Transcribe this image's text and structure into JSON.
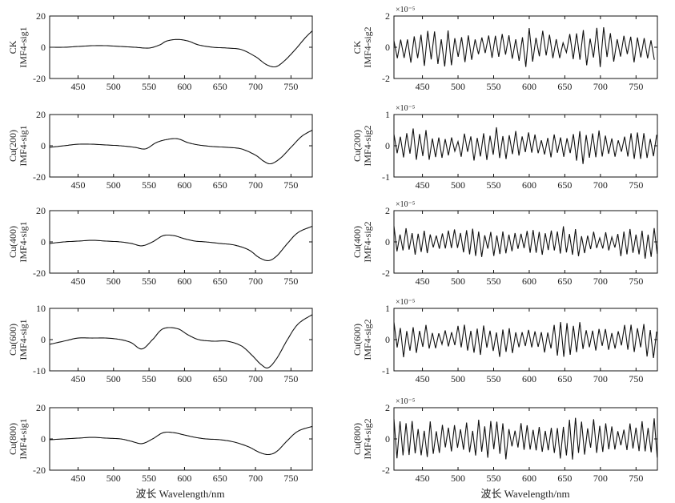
{
  "xlabel": "波长 Wavelength/nm",
  "chart_data": [
    {
      "type": "line",
      "column": "left",
      "row": 0,
      "ylabel": [
        "CK",
        "IMF4-sig1"
      ],
      "xlim": [
        410,
        780
      ],
      "ylim": [
        -20,
        20
      ],
      "yticks": [
        -20,
        0,
        20
      ],
      "xticks": [
        450,
        500,
        550,
        600,
        650,
        700,
        750
      ],
      "x": [
        410,
        430,
        450,
        470,
        490,
        510,
        530,
        550,
        565,
        575,
        590,
        605,
        620,
        640,
        660,
        680,
        700,
        715,
        728,
        740,
        755,
        770,
        780
      ],
      "y": [
        0,
        0,
        0.5,
        1,
        1,
        0.5,
        0,
        -0.5,
        1.5,
        4,
        5,
        4,
        1.5,
        0,
        -0.5,
        -1.5,
        -6,
        -11,
        -12.5,
        -9,
        -2,
        6,
        10.5
      ]
    },
    {
      "type": "line",
      "column": "left",
      "row": 1,
      "ylabel": [
        "Cu(200)",
        "IMF4-sig1"
      ],
      "xlim": [
        410,
        780
      ],
      "ylim": [
        -20,
        20
      ],
      "yticks": [
        -20,
        0,
        20
      ],
      "xticks": [
        450,
        500,
        550,
        600,
        650,
        700,
        750
      ],
      "x": [
        410,
        430,
        450,
        470,
        490,
        510,
        530,
        545,
        560,
        575,
        590,
        605,
        620,
        640,
        660,
        680,
        700,
        712,
        722,
        735,
        750,
        765,
        780
      ],
      "y": [
        -1,
        0,
        1,
        1,
        0.5,
        0,
        -1,
        -2,
        2,
        4,
        4.5,
        2,
        0.5,
        -0.5,
        -1,
        -2,
        -6,
        -10,
        -11.5,
        -8,
        -1,
        6,
        10
      ]
    },
    {
      "type": "line",
      "column": "left",
      "row": 2,
      "ylabel": [
        "Cu(400)",
        "IMF4-sig1"
      ],
      "xlim": [
        410,
        780
      ],
      "ylim": [
        -20,
        20
      ],
      "yticks": [
        -20,
        0,
        20
      ],
      "xticks": [
        450,
        500,
        550,
        600,
        650,
        700,
        750
      ],
      "x": [
        410,
        430,
        450,
        470,
        490,
        510,
        525,
        540,
        555,
        570,
        585,
        600,
        615,
        630,
        650,
        670,
        690,
        705,
        718,
        730,
        745,
        760,
        780
      ],
      "y": [
        -1,
        0,
        0.5,
        1,
        0.5,
        0,
        -1,
        -2.5,
        0,
        4,
        4,
        2,
        0.5,
        0,
        -1,
        -2,
        -5,
        -10,
        -12,
        -9,
        -1,
        6,
        10
      ]
    },
    {
      "type": "line",
      "column": "left",
      "row": 3,
      "ylabel": [
        "Cu(600)",
        "IMF4-sig1"
      ],
      "xlim": [
        410,
        780
      ],
      "ylim": [
        -10,
        10
      ],
      "yticks": [
        -10,
        0,
        10
      ],
      "xticks": [
        450,
        500,
        550,
        600,
        650,
        700,
        750
      ],
      "x": [
        410,
        430,
        450,
        470,
        490,
        510,
        525,
        540,
        555,
        570,
        590,
        605,
        620,
        640,
        660,
        680,
        695,
        708,
        718,
        730,
        745,
        760,
        780
      ],
      "y": [
        -1.5,
        -0.5,
        0.5,
        0.5,
        0.5,
        0,
        -1,
        -3,
        0,
        3.5,
        3.5,
        1.5,
        0,
        -0.5,
        -0.5,
        -2,
        -5,
        -8,
        -9,
        -6,
        0,
        5,
        8
      ]
    },
    {
      "type": "line",
      "column": "left",
      "row": 4,
      "ylabel": [
        "Cu(800)",
        "IMF4-sig1"
      ],
      "xlim": [
        410,
        780
      ],
      "ylim": [
        -20,
        20
      ],
      "yticks": [
        -20,
        0,
        20
      ],
      "xticks": [
        450,
        500,
        550,
        600,
        650,
        700,
        750
      ],
      "x": [
        410,
        430,
        450,
        470,
        490,
        510,
        525,
        540,
        555,
        570,
        585,
        600,
        615,
        630,
        650,
        670,
        690,
        705,
        718,
        730,
        745,
        760,
        780
      ],
      "y": [
        -0.5,
        0,
        0.5,
        1,
        0.5,
        0,
        -1.5,
        -3,
        0,
        4,
        4,
        2.5,
        1,
        0,
        -0.5,
        -2,
        -5,
        -8.5,
        -10,
        -8,
        -1,
        5,
        8
      ]
    },
    {
      "type": "line",
      "column": "right",
      "row": 0,
      "ylabel": [
        "CK",
        "IMF4-sig2"
      ],
      "multiplier": "×10⁻⁵",
      "xlim": [
        410,
        780
      ],
      "ylim": [
        -2,
        2
      ],
      "yticks": [
        -2,
        0,
        2
      ],
      "xticks": [
        450,
        500,
        550,
        600,
        650,
        700,
        750
      ],
      "amplitude": 0.55,
      "period": 9.5,
      "seed": 3
    },
    {
      "type": "line",
      "column": "right",
      "row": 1,
      "ylabel": [
        "Cu(200)",
        "IMF4-sig2"
      ],
      "multiplier": "×10⁻⁵",
      "xlim": [
        410,
        780
      ],
      "ylim": [
        -1,
        1
      ],
      "yticks": [
        -1,
        0,
        1
      ],
      "xticks": [
        450,
        500,
        550,
        600,
        650,
        700,
        750
      ],
      "amplitude": 0.5,
      "period": 9.0,
      "seed": 7
    },
    {
      "type": "line",
      "column": "right",
      "row": 2,
      "ylabel": [
        "Cu(400)",
        "IMF4-sig2"
      ],
      "multiplier": "×10⁻⁵",
      "xlim": [
        410,
        780
      ],
      "ylim": [
        -2,
        2
      ],
      "yticks": [
        -2,
        0,
        2
      ],
      "xticks": [
        450,
        500,
        550,
        600,
        650,
        700,
        750
      ],
      "amplitude": 0.45,
      "period": 8.5,
      "seed": 11
    },
    {
      "type": "line",
      "column": "right",
      "row": 3,
      "ylabel": [
        "Cu(600)",
        "IMF4-sig2"
      ],
      "multiplier": "×10⁻⁵",
      "xlim": [
        410,
        780
      ],
      "ylim": [
        -1,
        1
      ],
      "yticks": [
        -1,
        0,
        1
      ],
      "xticks": [
        450,
        500,
        550,
        600,
        650,
        700,
        750
      ],
      "amplitude": 0.5,
      "period": 9.0,
      "seed": 17
    },
    {
      "type": "line",
      "column": "right",
      "row": 4,
      "ylabel": [
        "Cu(800)",
        "IMF4-sig2"
      ],
      "multiplier": "×10⁻⁵",
      "xlim": [
        410,
        780
      ],
      "ylim": [
        -2,
        2
      ],
      "yticks": [
        -2,
        0,
        2
      ],
      "xticks": [
        450,
        500,
        550,
        600,
        650,
        700,
        750
      ],
      "amplitude": 0.6,
      "period": 8.5,
      "seed": 23
    }
  ]
}
